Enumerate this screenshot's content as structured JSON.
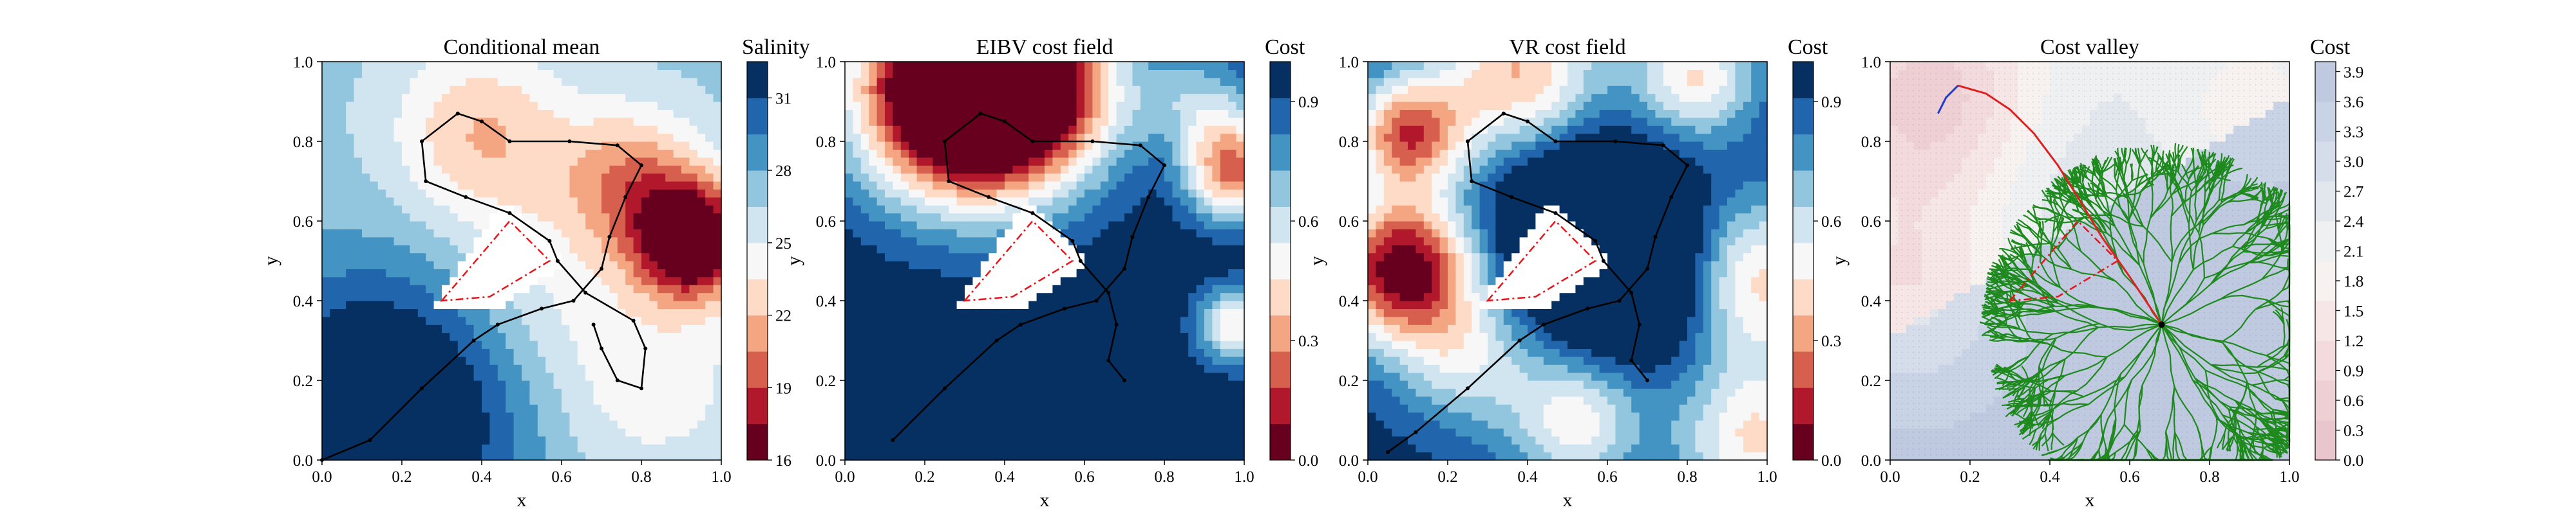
{
  "chart_data": [
    {
      "type": "heatmap",
      "title": "Conditional mean",
      "xlabel": "x",
      "ylabel": "y",
      "xlim": [
        0,
        1
      ],
      "ylim": [
        0,
        1
      ],
      "xticks": [
        "0.0",
        "0.2",
        "0.4",
        "0.6",
        "0.8",
        "1.0"
      ],
      "yticks": [
        "0.0",
        "0.2",
        "0.4",
        "0.6",
        "0.8",
        "1.0"
      ],
      "colorbar": {
        "label": "Salinity",
        "range": [
          16,
          32.5
        ],
        "ticks": [
          "16",
          "19",
          "22",
          "25",
          "28",
          "31"
        ],
        "tick_values": [
          16,
          19,
          22,
          25,
          28,
          31
        ],
        "colormap": [
          "#67001f",
          "#b2182b",
          "#d6604d",
          "#f4a582",
          "#fddbc7",
          "#f7f7f7",
          "#d1e5f0",
          "#92c5de",
          "#4393c3",
          "#2166ac",
          "#053061"
        ]
      },
      "field": {
        "mode": "salinity",
        "low_spots": [
          {
            "x": 0.92,
            "y": 0.55,
            "depth": 16
          }
        ],
        "fresh_spots": [
          {
            "x": 0.34,
            "y": 0.8,
            "depth": 8
          }
        ],
        "high_region": "bottom-left"
      },
      "trajectory": [
        [
          0.0,
          0.0
        ],
        [
          0.12,
          0.05
        ],
        [
          0.25,
          0.18
        ],
        [
          0.38,
          0.3
        ],
        [
          0.44,
          0.34
        ],
        [
          0.55,
          0.38
        ],
        [
          0.63,
          0.4
        ],
        [
          0.7,
          0.48
        ],
        [
          0.72,
          0.56
        ],
        [
          0.76,
          0.66
        ],
        [
          0.8,
          0.74
        ],
        [
          0.74,
          0.79
        ],
        [
          0.62,
          0.8
        ],
        [
          0.47,
          0.8
        ],
        [
          0.4,
          0.85
        ],
        [
          0.34,
          0.87
        ],
        [
          0.25,
          0.8
        ],
        [
          0.26,
          0.7
        ],
        [
          0.36,
          0.66
        ],
        [
          0.47,
          0.62
        ],
        [
          0.57,
          0.55
        ],
        [
          0.59,
          0.5
        ],
        [
          0.66,
          0.42
        ],
        [
          0.78,
          0.35
        ],
        [
          0.81,
          0.28
        ],
        [
          0.8,
          0.18
        ],
        [
          0.74,
          0.2
        ],
        [
          0.7,
          0.28
        ],
        [
          0.68,
          0.34
        ]
      ],
      "obstacle": [
        [
          0.3,
          0.4
        ],
        [
          0.47,
          0.6
        ],
        [
          0.57,
          0.5
        ],
        [
          0.42,
          0.41
        ]
      ]
    },
    {
      "type": "heatmap",
      "title": "EIBV cost field",
      "xlabel": "x",
      "ylabel": "y",
      "xlim": [
        0,
        1
      ],
      "ylim": [
        0,
        1
      ],
      "xticks": [
        "0.0",
        "0.2",
        "0.4",
        "0.6",
        "0.8",
        "1.0"
      ],
      "yticks": [
        "0.0",
        "0.2",
        "0.4",
        "0.6",
        "0.8",
        "1.0"
      ],
      "colorbar": {
        "label": "Cost",
        "range": [
          0,
          1
        ],
        "ticks": [
          "0.0",
          "0.3",
          "0.6",
          "0.9"
        ],
        "tick_values": [
          0,
          0.3,
          0.6,
          0.9
        ],
        "colormap": [
          "#67001f",
          "#b2182b",
          "#d6604d",
          "#f4a582",
          "#fddbc7",
          "#f7f7f7",
          "#d1e5f0",
          "#92c5de",
          "#4393c3",
          "#2166ac",
          "#053061"
        ]
      },
      "field": {
        "mode": "eibv",
        "hotspots": [
          {
            "x": 0.33,
            "y": 0.96,
            "r": 0.22,
            "value": 0.0
          },
          {
            "x": 0.98,
            "y": 0.72,
            "r": 0.09,
            "value": 0.3
          },
          {
            "x": 0.98,
            "y": 0.34,
            "r": 0.07,
            "value": 0.45
          },
          {
            "x": 0.33,
            "y": 0.73,
            "r": 0.09,
            "value": 0.55
          }
        ]
      },
      "trajectory": [
        [
          0.12,
          0.05
        ],
        [
          0.25,
          0.18
        ],
        [
          0.38,
          0.3
        ],
        [
          0.44,
          0.34
        ],
        [
          0.55,
          0.38
        ],
        [
          0.63,
          0.4
        ],
        [
          0.7,
          0.48
        ],
        [
          0.72,
          0.56
        ],
        [
          0.76,
          0.66
        ],
        [
          0.8,
          0.74
        ],
        [
          0.74,
          0.79
        ],
        [
          0.62,
          0.8
        ],
        [
          0.47,
          0.8
        ],
        [
          0.4,
          0.85
        ],
        [
          0.34,
          0.87
        ],
        [
          0.25,
          0.8
        ],
        [
          0.26,
          0.7
        ],
        [
          0.36,
          0.66
        ],
        [
          0.47,
          0.62
        ],
        [
          0.57,
          0.55
        ],
        [
          0.59,
          0.5
        ],
        [
          0.66,
          0.42
        ],
        [
          0.68,
          0.34
        ],
        [
          0.66,
          0.25
        ],
        [
          0.7,
          0.2
        ]
      ],
      "obstacle": [
        [
          0.3,
          0.4
        ],
        [
          0.47,
          0.6
        ],
        [
          0.57,
          0.5
        ],
        [
          0.42,
          0.41
        ]
      ]
    },
    {
      "type": "heatmap",
      "title": "VR cost field",
      "xlabel": "x",
      "ylabel": "y",
      "xlim": [
        0,
        1
      ],
      "ylim": [
        0,
        1
      ],
      "xticks": [
        "0.0",
        "0.2",
        "0.4",
        "0.6",
        "0.8",
        "1.0"
      ],
      "yticks": [
        "0.0",
        "0.2",
        "0.4",
        "0.6",
        "0.8",
        "1.0"
      ],
      "colorbar": {
        "label": "Cost",
        "range": [
          0,
          1
        ],
        "ticks": [
          "0.0",
          "0.3",
          "0.6",
          "0.9"
        ],
        "tick_values": [
          0,
          0.3,
          0.6,
          0.9
        ],
        "colormap": [
          "#67001f",
          "#b2182b",
          "#d6604d",
          "#f4a582",
          "#fddbc7",
          "#f7f7f7",
          "#d1e5f0",
          "#92c5de",
          "#4393c3",
          "#2166ac",
          "#053061"
        ]
      },
      "field": {
        "mode": "vr",
        "hotspots": [
          {
            "x": 0.09,
            "y": 0.48,
            "r": 0.17,
            "value": 0.0
          },
          {
            "x": 0.08,
            "y": 0.82,
            "r": 0.12,
            "value": 0.15
          },
          {
            "x": 0.4,
            "y": 0.95,
            "r": 0.17,
            "value": 0.2
          },
          {
            "x": 0.8,
            "y": 0.95,
            "r": 0.1,
            "value": 0.35
          },
          {
            "x": 0.95,
            "y": 0.4,
            "r": 0.18,
            "value": 0.3
          },
          {
            "x": 0.52,
            "y": 0.15,
            "r": 0.13,
            "value": 0.45
          },
          {
            "x": 0.95,
            "y": 0.05,
            "r": 0.14,
            "value": 0.35
          }
        ]
      },
      "trajectory": [
        [
          0.05,
          0.02
        ],
        [
          0.12,
          0.07
        ],
        [
          0.25,
          0.18
        ],
        [
          0.38,
          0.3
        ],
        [
          0.44,
          0.34
        ],
        [
          0.55,
          0.38
        ],
        [
          0.63,
          0.4
        ],
        [
          0.7,
          0.48
        ],
        [
          0.72,
          0.56
        ],
        [
          0.76,
          0.66
        ],
        [
          0.8,
          0.74
        ],
        [
          0.74,
          0.79
        ],
        [
          0.62,
          0.8
        ],
        [
          0.47,
          0.8
        ],
        [
          0.4,
          0.85
        ],
        [
          0.34,
          0.87
        ],
        [
          0.25,
          0.8
        ],
        [
          0.26,
          0.7
        ],
        [
          0.36,
          0.66
        ],
        [
          0.47,
          0.62
        ],
        [
          0.57,
          0.55
        ],
        [
          0.59,
          0.5
        ],
        [
          0.66,
          0.42
        ],
        [
          0.68,
          0.34
        ],
        [
          0.66,
          0.25
        ],
        [
          0.7,
          0.2
        ]
      ],
      "obstacle": [
        [
          0.3,
          0.4
        ],
        [
          0.47,
          0.6
        ],
        [
          0.57,
          0.5
        ],
        [
          0.42,
          0.41
        ]
      ]
    },
    {
      "type": "heatmap",
      "title": "Cost valley",
      "xlabel": "x",
      "ylabel": "y",
      "xlim": [
        0,
        1
      ],
      "ylim": [
        0,
        1
      ],
      "xticks": [
        "0.0",
        "0.2",
        "0.4",
        "0.6",
        "0.8",
        "1.0"
      ],
      "yticks": [
        "0.0",
        "0.2",
        "0.4",
        "0.6",
        "0.8",
        "1.0"
      ],
      "colorbar": {
        "label": "Cost",
        "range": [
          0,
          4
        ],
        "ticks": [
          "0.0",
          "0.3",
          "0.6",
          "0.9",
          "1.2",
          "1.5",
          "1.8",
          "2.1",
          "2.4",
          "2.7",
          "3.0",
          "3.3",
          "3.6",
          "3.9"
        ],
        "tick_values": [
          0,
          0.3,
          0.6,
          0.9,
          1.2,
          1.5,
          1.8,
          2.1,
          2.4,
          2.7,
          3.0,
          3.3,
          3.6,
          3.9
        ],
        "colormap": [
          "#e9c6cd",
          "#eecfd4",
          "#f3dadd",
          "#f6e6e6",
          "#f7f1ef",
          "#eff0f1",
          "#e2e7ee",
          "#d6ddea",
          "#c9d3e6",
          "#bfc9e0"
        ]
      },
      "field": {
        "mode": "valley",
        "red_hotspot": {
          "x": 0.08,
          "y": 0.93
        },
        "blue_region": "bottom-right"
      },
      "tree": {
        "root": [
          0.68,
          0.34
        ],
        "branch_color": "#1e8a1e",
        "path_color": "#e02020",
        "start_color": "#1f3cd0",
        "red_path": [
          [
            0.68,
            0.34
          ],
          [
            0.6,
            0.46
          ],
          [
            0.53,
            0.56
          ],
          [
            0.47,
            0.66
          ],
          [
            0.42,
            0.74
          ],
          [
            0.36,
            0.82
          ],
          [
            0.3,
            0.88
          ],
          [
            0.24,
            0.92
          ],
          [
            0.17,
            0.94
          ]
        ],
        "blue_path": [
          [
            0.17,
            0.94
          ],
          [
            0.14,
            0.91
          ],
          [
            0.12,
            0.87
          ]
        ]
      },
      "obstacle": [
        [
          0.3,
          0.4
        ],
        [
          0.47,
          0.6
        ],
        [
          0.57,
          0.5
        ],
        [
          0.42,
          0.41
        ]
      ]
    }
  ]
}
